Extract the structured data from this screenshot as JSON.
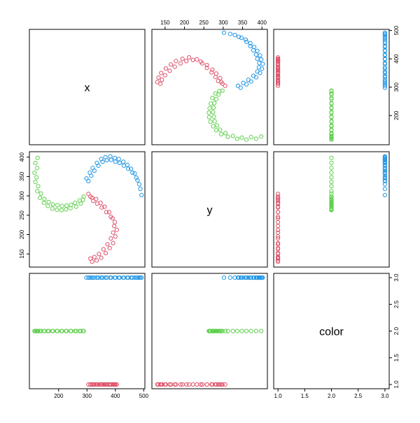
{
  "chart_data": {
    "type": "scatter-matrix",
    "palette": [
      "#DF536B",
      "#61D04F",
      "#2297E6"
    ],
    "variables": [
      {
        "name": "x",
        "lim": [
          97,
          504
        ],
        "ticks": [
          200,
          300,
          400,
          500
        ],
        "values": [
          126,
          118,
          124,
          115,
          122,
          118,
          128,
          125,
          138,
          134,
          150,
          148,
          165,
          162,
          180,
          178,
          196,
          194,
          212,
          210,
          228,
          226,
          244,
          242,
          258,
          262,
          274,
          278,
          288,
          286,
          298,
          305,
          310,
          315,
          320,
          326,
          335,
          340,
          350,
          355,
          365,
          370,
          382,
          385,
          398,
          400,
          412,
          415,
          428,
          430,
          442,
          445,
          455,
          460,
          468,
          474,
          478,
          484,
          488,
          492,
          305,
          312,
          318,
          322,
          332,
          336,
          348,
          352,
          362,
          368,
          378,
          384,
          390,
          398,
          396,
          405,
          392,
          400,
          384,
          392,
          372,
          380,
          358,
          366,
          342,
          350,
          326,
          334,
          312,
          318
        ]
      },
      {
        "name": "y",
        "lim": [
          116,
          414
        ],
        "ticks": [
          150,
          200,
          250,
          300,
          350,
          400
        ],
        "values": [
          398,
          385,
          372,
          360,
          348,
          336,
          325,
          312,
          306,
          295,
          292,
          282,
          284,
          274,
          278,
          267,
          276,
          264,
          274,
          263,
          275,
          265,
          277,
          268,
          282,
          272,
          288,
          280,
          298,
          290,
          345,
          338,
          360,
          352,
          372,
          365,
          385,
          378,
          395,
          388,
          400,
          392,
          402,
          393,
          398,
          388,
          395,
          385,
          388,
          378,
          380,
          370,
          370,
          360,
          358,
          347,
          340,
          330,
          318,
          302,
          305,
          298,
          295,
          287,
          292,
          280,
          282,
          270,
          272,
          258,
          258,
          246,
          242,
          232,
          222,
          212,
          205,
          195,
          190,
          178,
          175,
          165,
          162,
          152,
          150,
          140,
          142,
          133,
          138,
          130
        ]
      },
      {
        "name": "color",
        "lim": [
          0.92,
          3.08
        ],
        "ticks": [
          {
            "value": 1,
            "label": "1.0"
          },
          {
            "value": 1.5,
            "label": "1.5"
          },
          {
            "value": 2,
            "label": "2.0"
          },
          {
            "value": 2.5,
            "label": "2.5"
          },
          {
            "value": 3,
            "label": "3.0"
          }
        ],
        "values": [
          2,
          2,
          2,
          2,
          2,
          2,
          2,
          2,
          2,
          2,
          2,
          2,
          2,
          2,
          2,
          2,
          2,
          2,
          2,
          2,
          2,
          2,
          2,
          2,
          2,
          2,
          2,
          2,
          2,
          2,
          3,
          3,
          3,
          3,
          3,
          3,
          3,
          3,
          3,
          3,
          3,
          3,
          3,
          3,
          3,
          3,
          3,
          3,
          3,
          3,
          3,
          3,
          3,
          3,
          3,
          3,
          3,
          3,
          3,
          3,
          1,
          1,
          1,
          1,
          1,
          1,
          1,
          1,
          1,
          1,
          1,
          1,
          1,
          1,
          1,
          1,
          1,
          1,
          1,
          1,
          1,
          1,
          1,
          1,
          1,
          1,
          1,
          1,
          1,
          1
        ]
      }
    ]
  }
}
